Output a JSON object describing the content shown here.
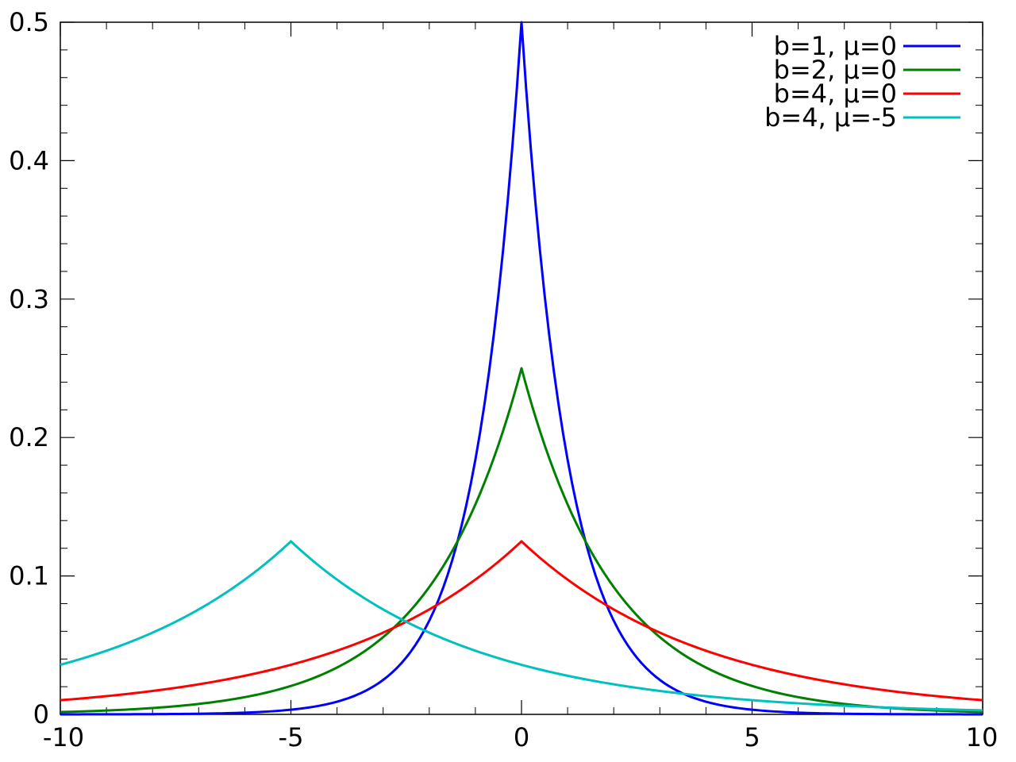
{
  "chart_data": {
    "type": "line",
    "title": "",
    "xlabel": "",
    "ylabel": "",
    "xlim": [
      -10,
      10
    ],
    "ylim": [
      0,
      0.5
    ],
    "x_ticks": [
      -10,
      -5,
      0,
      5,
      10
    ],
    "x_tick_labels": [
      "-10",
      "-5",
      "0",
      "5",
      "10"
    ],
    "y_ticks": [
      0,
      0.1,
      0.2,
      0.3,
      0.4,
      0.5
    ],
    "y_tick_labels": [
      "0",
      "0.1",
      "0.2",
      "0.3",
      "0.4",
      "0.5"
    ],
    "grid": false,
    "legend_position": "top-right",
    "series": [
      {
        "name": "b=1, μ=0",
        "color": "#0000ff",
        "function": "laplace_pdf",
        "b": 1,
        "mu": 0,
        "peak_plotted": 0.476
      },
      {
        "name": "b=2, μ=0",
        "color": "#008000",
        "function": "laplace_pdf",
        "b": 2,
        "mu": 0,
        "peak_plotted": 0.244
      },
      {
        "name": "b=4, μ=0",
        "color": "#ff0000",
        "function": "laplace_pdf",
        "b": 4,
        "mu": 0,
        "peak_plotted": 0.124
      },
      {
        "name": "b=4, μ=-5",
        "color": "#00c0c0",
        "function": "laplace_pdf",
        "b": 4,
        "mu": -5,
        "peak_plotted": 0.124
      }
    ]
  }
}
